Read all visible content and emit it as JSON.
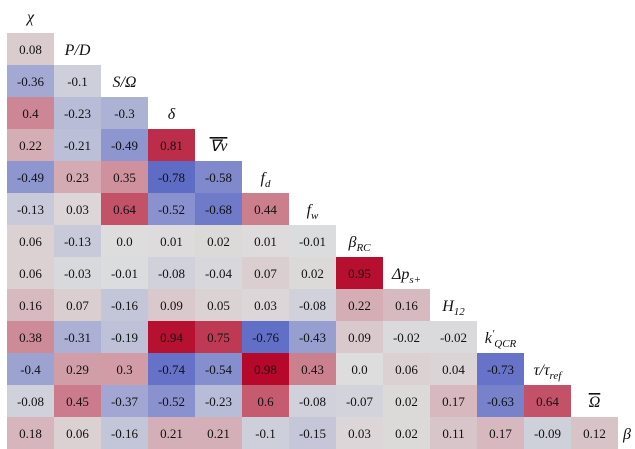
{
  "chart_data": {
    "type": "heatmap",
    "title": "",
    "variables": [
      "χ",
      "P/D",
      "S/Ω",
      "δ",
      "∇v̄",
      "f_d",
      "f_w",
      "β_RC",
      "Δp_s+",
      "H_12",
      "k'_QCR",
      "τ/τ_ref",
      "Ω̄",
      "β"
    ],
    "label_parts": [
      {
        "base": "χ",
        "sub": "",
        "sup": ""
      },
      {
        "base": "P/D",
        "sub": "",
        "sup": ""
      },
      {
        "base": "S/Ω",
        "sub": "",
        "sup": ""
      },
      {
        "base": "δ",
        "sub": "",
        "sup": ""
      },
      {
        "base": "∇v",
        "sub": "",
        "sup": "",
        "overline": true
      },
      {
        "base": "f",
        "sub": "d",
        "sup": ""
      },
      {
        "base": "f",
        "sub": "w",
        "sup": ""
      },
      {
        "base": "β",
        "sub": "RC",
        "sup": ""
      },
      {
        "base": "Δp",
        "sub": "s+",
        "sup": ""
      },
      {
        "base": "H",
        "sub": "12",
        "sup": ""
      },
      {
        "base": "k",
        "sub": "QCR",
        "sup": "′"
      },
      {
        "base": "τ/τ",
        "sub": "ref",
        "sup": ""
      },
      {
        "base": "Ω",
        "sub": "",
        "sup": "",
        "overline": true
      },
      {
        "base": "β",
        "sub": "",
        "sup": ""
      }
    ],
    "matrix": [
      [
        0.08
      ],
      [
        -0.36,
        -0.1
      ],
      [
        0.4,
        -0.23,
        -0.3
      ],
      [
        0.22,
        -0.21,
        -0.49,
        0.81
      ],
      [
        -0.49,
        0.23,
        0.35,
        -0.78,
        -0.58
      ],
      [
        -0.13,
        0.03,
        0.64,
        -0.52,
        -0.68,
        0.44
      ],
      [
        0.06,
        -0.13,
        0.0,
        0.01,
        0.02,
        0.01,
        -0.01
      ],
      [
        0.06,
        -0.03,
        -0.01,
        -0.08,
        -0.04,
        0.07,
        0.02,
        0.95
      ],
      [
        0.16,
        0.07,
        -0.16,
        0.09,
        0.05,
        0.03,
        -0.08,
        0.22,
        0.16
      ],
      [
        0.38,
        -0.31,
        -0.19,
        0.94,
        0.75,
        -0.76,
        -0.43,
        0.09,
        -0.02,
        -0.02
      ],
      [
        -0.4,
        0.29,
        0.3,
        -0.74,
        -0.54,
        0.98,
        0.43,
        0.0,
        0.06,
        0.04,
        -0.73
      ],
      [
        -0.08,
        0.45,
        -0.37,
        -0.52,
        -0.23,
        0.6,
        -0.08,
        -0.07,
        0.02,
        0.17,
        -0.63,
        0.64
      ],
      [
        0.18,
        0.06,
        -0.16,
        0.21,
        0.21,
        -0.1,
        -0.15,
        0.03,
        0.02,
        0.11,
        0.17,
        -0.09,
        0.12
      ]
    ],
    "labels": [
      [
        "0.08"
      ],
      [
        "-0.36",
        "-0.1"
      ],
      [
        "0.4",
        "-0.23",
        "-0.3"
      ],
      [
        "0.22",
        "-0.21",
        "-0.49",
        "0.81"
      ],
      [
        "-0.49",
        "0.23",
        "0.35",
        "-0.78",
        "-0.58"
      ],
      [
        "-0.13",
        "0.03",
        "0.64",
        "-0.52",
        "-0.68",
        "0.44"
      ],
      [
        "0.06",
        "-0.13",
        "0.0",
        "0.01",
        "0.02",
        "0.01",
        "-0.01"
      ],
      [
        "0.06",
        "-0.03",
        "-0.01",
        "-0.08",
        "-0.04",
        "0.07",
        "0.02",
        "0.95"
      ],
      [
        "0.16",
        "0.07",
        "-0.16",
        "0.09",
        "0.05",
        "0.03",
        "-0.08",
        "0.22",
        "0.16"
      ],
      [
        "0.38",
        "-0.31",
        "-0.19",
        "0.94",
        "0.75",
        "-0.76",
        "-0.43",
        "0.09",
        "-0.02",
        "-0.02"
      ],
      [
        "-0.4",
        "0.29",
        "0.3",
        "-0.74",
        "-0.54",
        "0.98",
        "0.43",
        "0.0",
        "0.06",
        "0.04",
        "-0.73"
      ],
      [
        "-0.08",
        "0.45",
        "-0.37",
        "-0.52",
        "-0.23",
        "0.6",
        "-0.08",
        "-0.07",
        "0.02",
        "0.17",
        "-0.63",
        "0.64"
      ],
      [
        "0.18",
        "0.06",
        "-0.16",
        "0.21",
        "0.21",
        "-0.1",
        "-0.15",
        "0.03",
        "0.02",
        "0.11",
        "0.17",
        "-0.09",
        "0.12"
      ]
    ],
    "colormap": "diverging blue-white-red",
    "colors": {
      "negative": "#3b4cc0",
      "neutral": "#dddddd",
      "positive": "#b40426"
    },
    "value_range": [
      -1,
      1
    ],
    "legend": "none",
    "grid": false
  }
}
